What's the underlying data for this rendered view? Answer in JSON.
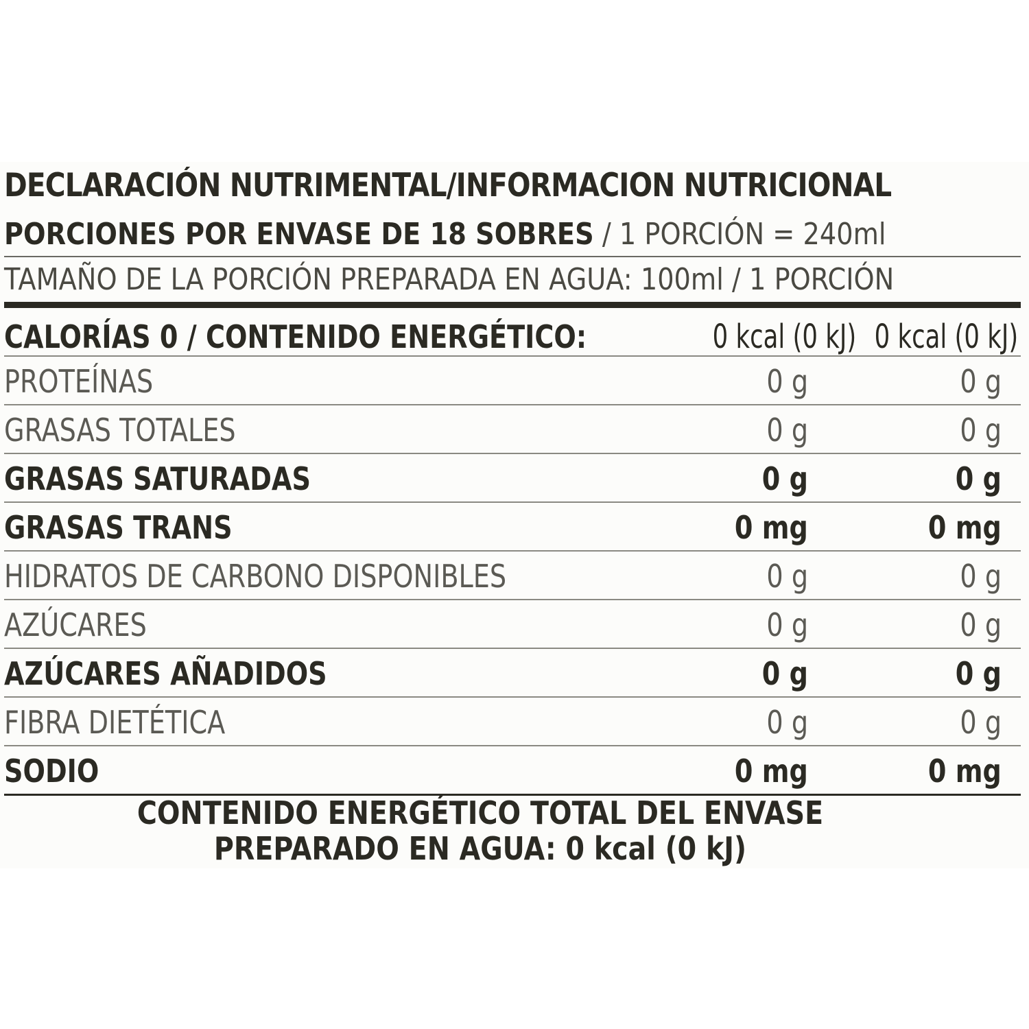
{
  "label": {
    "title": "DECLARACIÓN NUTRIMENTAL/INFORMACION NUTRICIONAL",
    "servings_bold": "PORCIONES POR ENVASE DE 18 SOBRES",
    "servings_light": " / 1 PORCIÓN = 240ml",
    "serving_size": "TAMAÑO DE LA PORCIÓN PREPARADA EN AGUA: 100ml / 1 PORCIÓN",
    "energy": {
      "name": "CALORÍAS 0 / CONTENIDO ENERGÉTICO:",
      "v1": "0 kcal (0 kJ)",
      "v2": "0 kcal (0 kJ)"
    },
    "rows": [
      {
        "name": "PROTEÍNAS",
        "v1": "0 g",
        "v2": "0 g"
      },
      {
        "name": "GRASAS TOTALES",
        "v1": "0 g",
        "v2": "0 g"
      },
      {
        "name": "GRASAS SATURADAS",
        "v1": "0 g",
        "v2": "0 g"
      },
      {
        "name": "GRASAS TRANS",
        "v1": "0 mg",
        "v2": "0 mg"
      },
      {
        "name": "HIDRATOS DE CARBONO DISPONIBLES",
        "v1": "0 g",
        "v2": "0 g"
      },
      {
        "name": "AZÚCARES",
        "v1": "0 g",
        "v2": "0 g"
      },
      {
        "name": "AZÚCARES AÑADIDOS",
        "v1": "0 g",
        "v2": "0 g"
      },
      {
        "name": "FIBRA DIETÉTICA",
        "v1": "0 g",
        "v2": "0 g"
      },
      {
        "name": "SODIO",
        "v1": "0 mg",
        "v2": "0 mg"
      }
    ],
    "footer_line1": "CONTENIDO ENERGÉTICO TOTAL DEL ENVASE",
    "footer_line2": "PREPARADO EN AGUA: 0 kcal (0 kJ)"
  }
}
